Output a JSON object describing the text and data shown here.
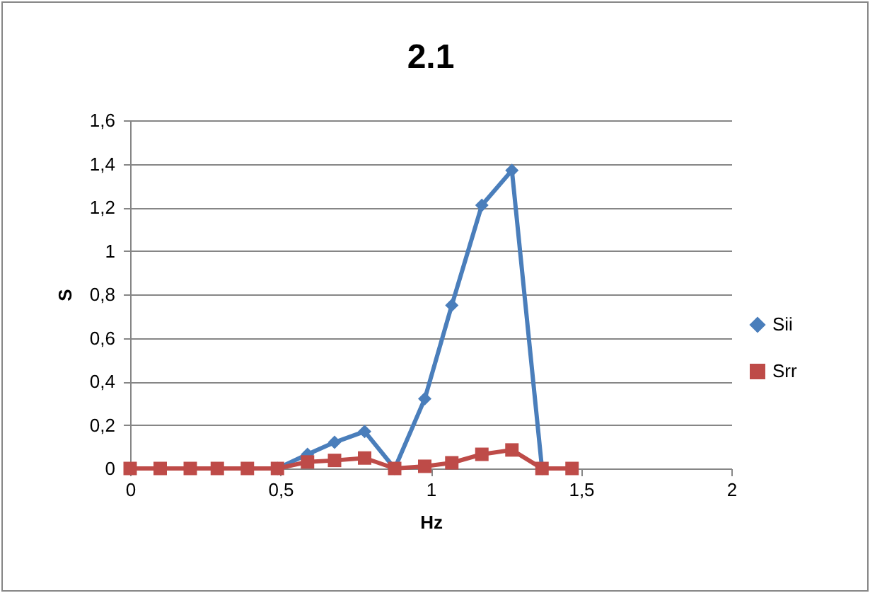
{
  "chart_data": {
    "type": "line",
    "title": "2.1",
    "xlabel": "Hz",
    "ylabel": "S",
    "x": [
      0,
      0.1,
      0.2,
      0.29,
      0.39,
      0.49,
      0.59,
      0.68,
      0.78,
      0.88,
      0.98,
      1.07,
      1.17,
      1.27,
      1.37,
      1.47
    ],
    "series": [
      {
        "name": "Sii",
        "color": "#4a7ebb",
        "marker": "diamond",
        "values": [
          null,
          null,
          null,
          null,
          null,
          0,
          0.065,
          0.12,
          0.17,
          0,
          0.32,
          0.75,
          1.21,
          1.37,
          0,
          null
        ]
      },
      {
        "name": "Srr",
        "color": "#be4b48",
        "marker": "square",
        "values": [
          0,
          0,
          0,
          0,
          0,
          0,
          0.03,
          0.037,
          0.048,
          0,
          0.01,
          0.026,
          0.065,
          0.085,
          0,
          0
        ]
      }
    ],
    "xlim": [
      0,
      2
    ],
    "xticks": [
      0,
      {
        "value": 0.5,
        "label": "0,5"
      },
      1,
      {
        "value": 1.5,
        "label": "1,5"
      },
      2
    ],
    "ylim": [
      0,
      1.6
    ],
    "yticks": [
      0,
      {
        "value": 0.2,
        "label": "0,2"
      },
      {
        "value": 0.4,
        "label": "0,4"
      },
      {
        "value": 0.6,
        "label": "0,6"
      },
      {
        "value": 0.8,
        "label": "0,8"
      },
      1,
      {
        "value": 1.2,
        "label": "1,2"
      },
      {
        "value": 1.4,
        "label": "1,4"
      },
      {
        "value": 1.6,
        "label": "1,6"
      }
    ],
    "grid": "y",
    "legend": "right",
    "line_style": "solid"
  }
}
